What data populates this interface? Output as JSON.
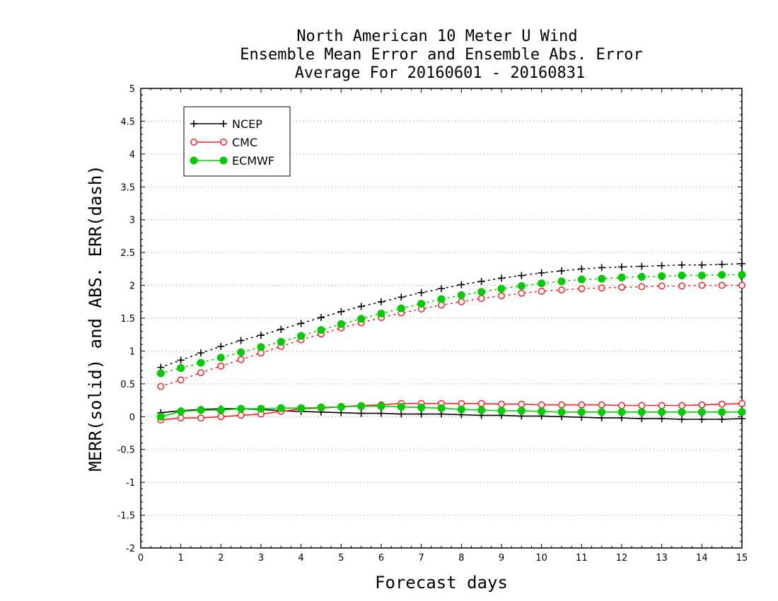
{
  "chart_data": {
    "type": "line",
    "title": [
      "North American 10 Meter U Wind",
      "Ensemble Mean Error and Ensemble Abs. Error",
      "Average For 20160601 - 20160831"
    ],
    "xlabel": "Forecast days",
    "ylabel": "MERR(solid) and ABS. ERR(dash)",
    "xlim": [
      0,
      15
    ],
    "ylim": [
      -2,
      5
    ],
    "xticks": [
      "0",
      "1",
      "2",
      "3",
      "4",
      "5",
      "6",
      "7",
      "8",
      "9",
      "10",
      "11",
      "12",
      "13",
      "14",
      "15"
    ],
    "yticks": [
      "5",
      "4.5",
      "4",
      "3.5",
      "3",
      "2.5",
      "2",
      "1.5",
      "1",
      "0.5",
      "0",
      "-0.5",
      "-1",
      "-1.5",
      "-2"
    ],
    "ytick_values": [
      5,
      4.5,
      4,
      3.5,
      3,
      2.5,
      2,
      1.5,
      1,
      0.5,
      0,
      -0.5,
      -1,
      -1.5,
      -2
    ],
    "grid": "horizontal dotted",
    "legend": {
      "placement": "top-left",
      "entries": [
        "NCEP",
        "CMC",
        "ECMWF"
      ]
    },
    "x": [
      0.5,
      1,
      1.5,
      2,
      2.5,
      3,
      3.5,
      4,
      4.5,
      5,
      5.5,
      6,
      6.5,
      7,
      7.5,
      8,
      8.5,
      9,
      9.5,
      10,
      10.5,
      11,
      11.5,
      12,
      12.5,
      13,
      13.5,
      14,
      14.5,
      15
    ],
    "series": [
      {
        "name": "NCEP",
        "color": "#000000",
        "marker": "plus",
        "merr": [
          0.06,
          0.09,
          0.11,
          0.12,
          0.12,
          0.11,
          0.09,
          0.08,
          0.07,
          0.06,
          0.05,
          0.05,
          0.04,
          0.04,
          0.04,
          0.03,
          0.02,
          0.02,
          0.01,
          0.01,
          0.0,
          -0.01,
          -0.02,
          -0.02,
          -0.03,
          -0.03,
          -0.04,
          -0.04,
          -0.04,
          -0.03
        ],
        "abs_err": [
          0.75,
          0.86,
          0.97,
          1.07,
          1.16,
          1.24,
          1.33,
          1.42,
          1.51,
          1.6,
          1.68,
          1.75,
          1.82,
          1.89,
          1.95,
          2.01,
          2.06,
          2.11,
          2.15,
          2.19,
          2.22,
          2.25,
          2.27,
          2.28,
          2.29,
          2.3,
          2.31,
          2.31,
          2.32,
          2.33
        ]
      },
      {
        "name": "CMC",
        "color": "#ff2020",
        "marker": "open-circle",
        "merr": [
          -0.05,
          -0.02,
          -0.02,
          0.0,
          0.02,
          0.04,
          0.08,
          0.12,
          0.13,
          0.15,
          0.17,
          0.18,
          0.2,
          0.2,
          0.2,
          0.2,
          0.2,
          0.19,
          0.19,
          0.18,
          0.18,
          0.18,
          0.18,
          0.17,
          0.17,
          0.17,
          0.17,
          0.18,
          0.19,
          0.2
        ],
        "abs_err": [
          0.46,
          0.56,
          0.67,
          0.77,
          0.87,
          0.97,
          1.07,
          1.17,
          1.26,
          1.35,
          1.43,
          1.51,
          1.58,
          1.64,
          1.7,
          1.75,
          1.8,
          1.84,
          1.88,
          1.91,
          1.93,
          1.95,
          1.96,
          1.97,
          1.98,
          1.99,
          1.99,
          2.0,
          2.0,
          2.0
        ]
      },
      {
        "name": "ECMWF",
        "color": "#00cc00",
        "marker": "filled-circle",
        "merr": [
          0.0,
          0.08,
          0.1,
          0.1,
          0.12,
          0.12,
          0.13,
          0.13,
          0.14,
          0.15,
          0.16,
          0.16,
          0.15,
          0.14,
          0.13,
          0.11,
          0.1,
          0.09,
          0.09,
          0.08,
          0.07,
          0.07,
          0.07,
          0.07,
          0.07,
          0.07,
          0.07,
          0.07,
          0.07,
          0.07
        ],
        "abs_err": [
          0.66,
          0.74,
          0.82,
          0.9,
          0.98,
          1.06,
          1.14,
          1.23,
          1.32,
          1.41,
          1.49,
          1.57,
          1.65,
          1.72,
          1.79,
          1.85,
          1.9,
          1.95,
          1.99,
          2.03,
          2.06,
          2.09,
          2.1,
          2.12,
          2.13,
          2.14,
          2.15,
          2.15,
          2.16,
          2.16
        ]
      }
    ]
  }
}
